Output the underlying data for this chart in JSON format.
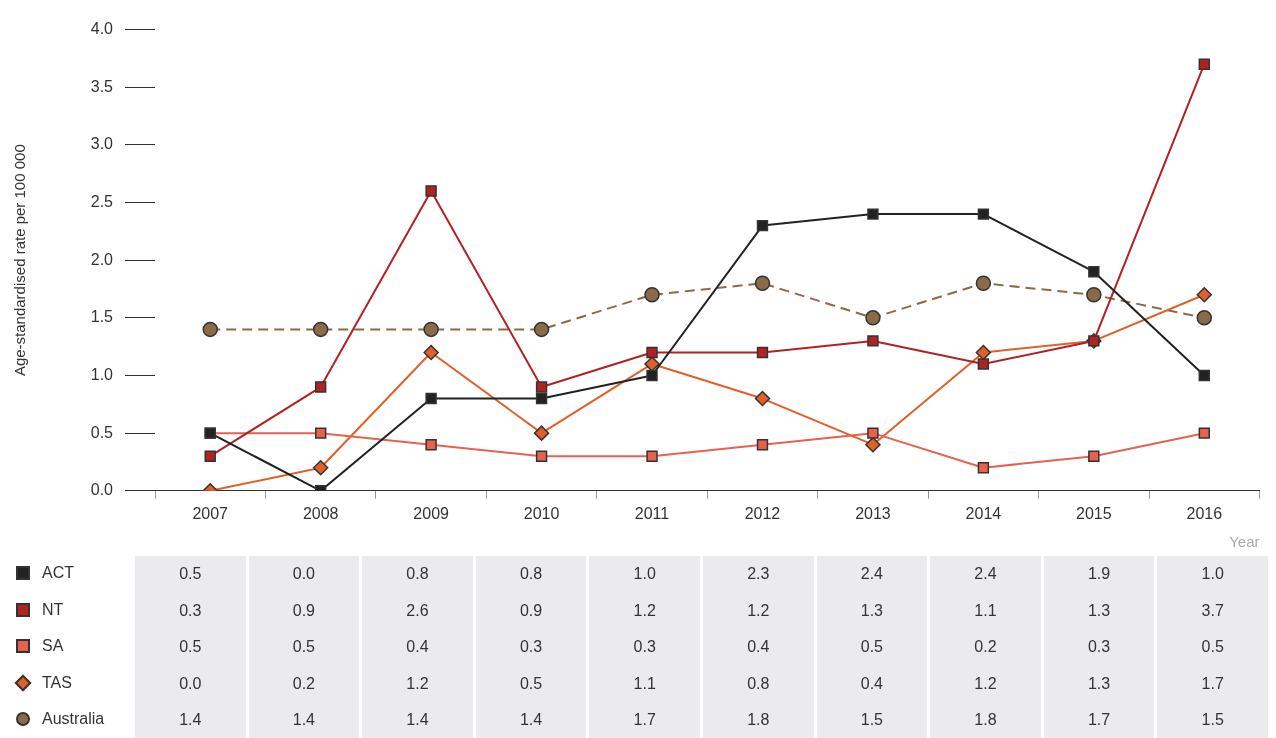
{
  "chart_data": {
    "type": "line",
    "ylabel": "Age-standardised rate per 100 000",
    "xlabel": "Year",
    "categories": [
      "2007",
      "2008",
      "2009",
      "2010",
      "2011",
      "2012",
      "2013",
      "2014",
      "2015",
      "2016"
    ],
    "ylim": [
      0,
      4
    ],
    "yticks": [
      {
        "value": 0,
        "label": "0.0"
      },
      {
        "value": 0.5,
        "label": "0.5"
      },
      {
        "value": 1,
        "label": "1.0"
      },
      {
        "value": 1.5,
        "label": "1.5"
      },
      {
        "value": 2,
        "label": "2.0"
      },
      {
        "value": 2.5,
        "label": "2.5"
      },
      {
        "value": 3,
        "label": "3.0"
      },
      {
        "value": 3.5,
        "label": "3.5"
      },
      {
        "value": 4,
        "label": "4.0"
      }
    ],
    "grid": false,
    "legend": "bottom left",
    "series": [
      {
        "name": "ACT",
        "color": "#222222",
        "marker": "square",
        "line_style": "solid",
        "values": [
          0.5,
          0,
          0.8,
          0.8,
          1,
          2.3,
          2.4,
          2.4,
          1.9,
          1
        ],
        "value_labels": [
          "0.5",
          "0.0",
          "0.8",
          "0.8",
          "1.0",
          "2.3",
          "2.4",
          "2.4",
          "1.9",
          "1.0"
        ]
      },
      {
        "name": "NT",
        "color": "#b22222",
        "marker": "square",
        "line_style": "solid",
        "values": [
          0.3,
          0.9,
          2.6,
          0.9,
          1.2,
          1.2,
          1.3,
          1.1,
          1.3,
          3.7
        ],
        "value_labels": [
          "0.3",
          "0.9",
          "2.6",
          "0.9",
          "1.2",
          "1.2",
          "1.3",
          "1.1",
          "1.3",
          "3.7"
        ]
      },
      {
        "name": "SA",
        "color": "#e8604e",
        "marker": "square",
        "line_style": "solid",
        "values": [
          0.5,
          0.5,
          0.4,
          0.3,
          0.3,
          0.4,
          0.5,
          0.2,
          0.3,
          0.5
        ],
        "value_labels": [
          "0.5",
          "0.5",
          "0.4",
          "0.3",
          "0.3",
          "0.4",
          "0.5",
          "0.2",
          "0.3",
          "0.5"
        ]
      },
      {
        "name": "TAS",
        "color": "#e0602a",
        "marker": "diamond",
        "line_style": "solid",
        "values": [
          0,
          0.2,
          1.2,
          0.5,
          1.1,
          0.8,
          0.4,
          1.2,
          1.3,
          1.7
        ],
        "value_labels": [
          "0.0",
          "0.2",
          "1.2",
          "0.5",
          "1.1",
          "0.8",
          "0.4",
          "1.2",
          "1.3",
          "1.7"
        ]
      },
      {
        "name": "Australia",
        "color": "#8b6a4a",
        "marker": "circle",
        "line_style": "dashed",
        "values": [
          1.4,
          1.4,
          1.4,
          1.4,
          1.7,
          1.8,
          1.5,
          1.8,
          1.7,
          1.5
        ],
        "value_labels": [
          "1.4",
          "1.4",
          "1.4",
          "1.4",
          "1.7",
          "1.8",
          "1.5",
          "1.8",
          "1.7",
          "1.5"
        ]
      }
    ]
  }
}
